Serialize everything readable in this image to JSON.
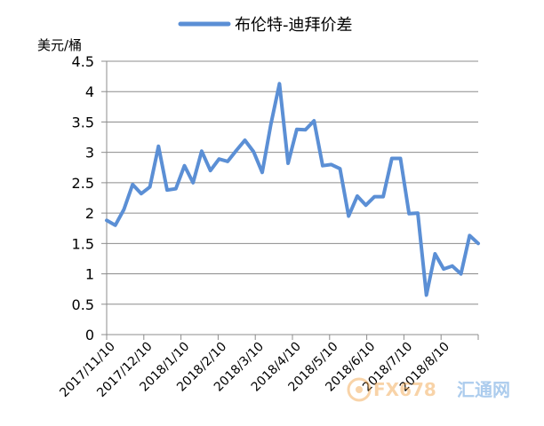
{
  "chart_data": {
    "type": "line",
    "title": "",
    "ylabel": "美元/桶",
    "xlabel": "",
    "ylim": [
      0,
      4.5
    ],
    "yticks": [
      "0",
      "0.5",
      "1",
      "1.5",
      "2",
      "2.5",
      "3",
      "3.5",
      "4",
      "4.5"
    ],
    "xtick_labels": [
      "2017/11/10",
      "2017/12/10",
      "2018/1/10",
      "2018/2/10",
      "2018/3/10",
      "2018/4/10",
      "2018/5/10",
      "2018/6/10",
      "2018/7/10",
      "2018/8/10"
    ],
    "grid": "horizontal",
    "legend_position": "top-center",
    "series": [
      {
        "name": "布伦特-迪拜价差",
        "color": "#5b8fd5",
        "values": [
          1.88,
          1.8,
          2.06,
          2.47,
          2.32,
          2.43,
          3.1,
          2.38,
          2.4,
          2.78,
          2.5,
          3.02,
          2.7,
          2.89,
          2.85,
          3.03,
          3.2,
          3.01,
          2.67,
          3.46,
          4.13,
          2.82,
          3.38,
          3.37,
          3.52,
          2.78,
          2.8,
          2.73,
          1.95,
          2.28,
          2.13,
          2.27,
          2.27,
          2.9,
          2.9,
          1.99,
          2.0,
          0.65,
          1.33,
          1.08,
          1.13,
          1.0,
          1.63,
          1.5
        ]
      }
    ]
  },
  "watermark": {
    "brand": "FX678",
    "brand_cn": "汇通网"
  }
}
